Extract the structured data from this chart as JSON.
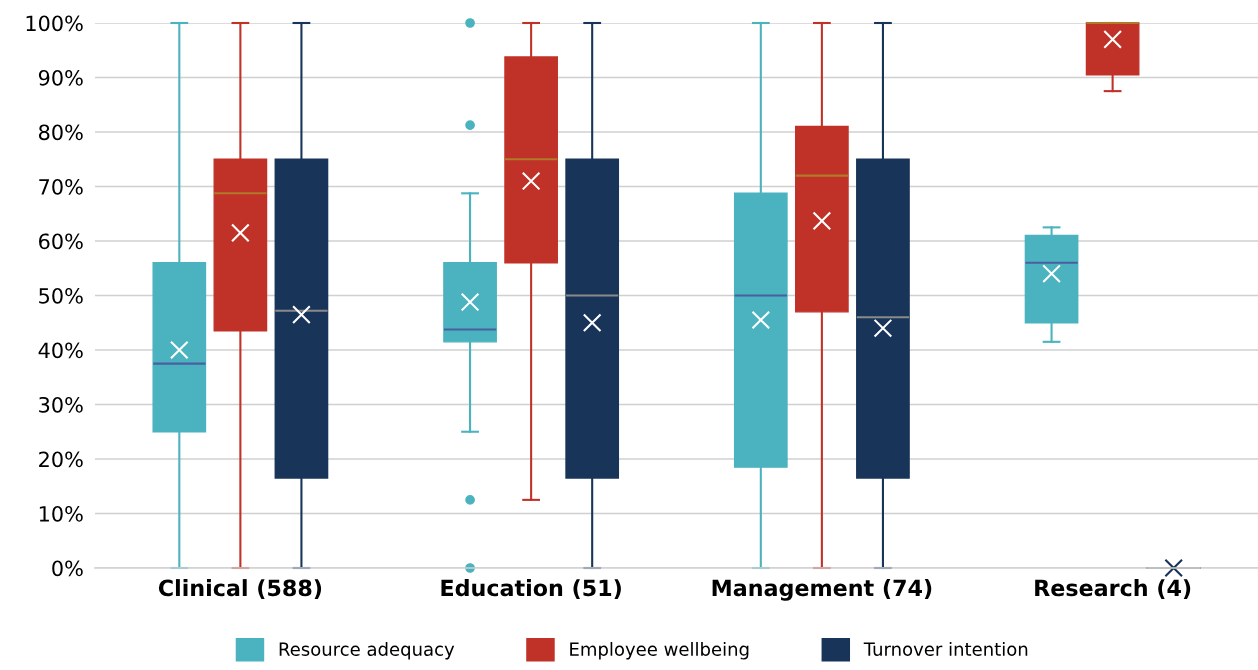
{
  "chart_data": {
    "type": "box",
    "categories": [
      "Clinical (588)",
      "Education (51)",
      "Management (74)",
      "Research (4)"
    ],
    "ylim": [
      0,
      100
    ],
    "yticks": [
      {
        "value": 0,
        "label": "0%"
      },
      {
        "value": 10,
        "label": "10%"
      },
      {
        "value": 20,
        "label": "20%"
      },
      {
        "value": 30,
        "label": "30%"
      },
      {
        "value": 40,
        "label": "40%"
      },
      {
        "value": 50,
        "label": "50%"
      },
      {
        "value": 60,
        "label": "60%"
      },
      {
        "value": 70,
        "label": "70%"
      },
      {
        "value": 80,
        "label": "80%"
      },
      {
        "value": 90,
        "label": "90%"
      },
      {
        "value": 100,
        "label": "100%"
      }
    ],
    "grid": "y",
    "legend": "bottom",
    "marker": "cross",
    "series": [
      {
        "name": "Resource adequacy",
        "color": "#4bb3bf",
        "boxes": [
          {
            "low": 0,
            "q1": 25,
            "median": 37.5,
            "q3": 56,
            "high": 100,
            "mean": 40
          },
          {
            "low": 25,
            "q1": 41.5,
            "median": 43.75,
            "q3": 56,
            "high": 68.75,
            "mean": 48.8,
            "outliers": [
              100,
              81.25,
              12.5,
              0
            ]
          },
          {
            "low": 0,
            "q1": 18.5,
            "median": 50,
            "q3": 68.75,
            "high": 100,
            "mean": 45.5
          },
          {
            "low": 41.5,
            "q1": 45,
            "median": 56,
            "q3": 61,
            "high": 62.5,
            "mean": 54
          }
        ]
      },
      {
        "name": "Employee wellbeing",
        "color": "#c03228",
        "boxes": [
          {
            "low": 0,
            "q1": 43.5,
            "median": 68.75,
            "q3": 75,
            "high": 100,
            "mean": 61.5
          },
          {
            "low": 12.5,
            "q1": 56,
            "median": 75,
            "q3": 93.75,
            "high": 100,
            "mean": 71
          },
          {
            "low": 0,
            "q1": 47,
            "median": 72,
            "q3": 81,
            "high": 100,
            "mean": 63.7
          },
          {
            "low": 87.5,
            "q1": 90.5,
            "median": 100,
            "q3": 100,
            "high": 100,
            "mean": 97
          }
        ]
      },
      {
        "name": "Turnover intention",
        "color": "#183459",
        "boxes": [
          {
            "low": 0,
            "q1": 16.5,
            "median": 47.2,
            "q3": 75,
            "high": 100,
            "mean": 46.5
          },
          {
            "low": 0,
            "q1": 16.5,
            "median": 50,
            "q3": 75,
            "high": 100,
            "mean": 45
          },
          {
            "low": 0,
            "q1": 16.5,
            "median": 46,
            "q3": 75,
            "high": 100,
            "mean": 44
          },
          {
            "low": 0,
            "q1": 0,
            "median": 0,
            "q3": 0,
            "high": 0,
            "mean": 0
          }
        ]
      }
    ]
  }
}
